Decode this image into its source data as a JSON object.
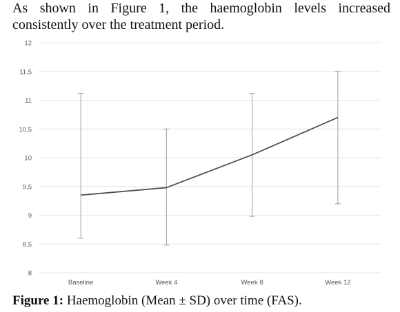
{
  "document": {
    "intro_text": "As shown in Figure 1, the haemoglobin levels increased consistently over the treatment period.",
    "caption_label": "Figure 1:",
    "caption_text": " Haemoglobin (Mean ± SD) over time (FAS)."
  },
  "chart_data": {
    "type": "line",
    "title": "",
    "xlabel": "",
    "ylabel": "",
    "ylim": [
      8,
      12
    ],
    "y_ticks": [
      "8",
      "8,5",
      "9",
      "9,5",
      "10",
      "10,5",
      "11",
      "11,5",
      "12"
    ],
    "y_tick_values": [
      8,
      8.5,
      9,
      9.5,
      10,
      10.5,
      11,
      11.5,
      12
    ],
    "categories": [
      "Baseline",
      "Week 4",
      "Week 8",
      "Week 12"
    ],
    "grid": true,
    "series": [
      {
        "values": [
          9.35,
          9.48,
          10.05,
          10.7
        ],
        "sd_lower": [
          8.6,
          8.48,
          8.98,
          9.2
        ],
        "sd_upper": [
          11.12,
          10.5,
          11.12,
          11.5
        ]
      }
    ],
    "colors": {
      "line": "#505050",
      "error_bar": "#a0a0a0",
      "grid": "#e6e6e6"
    }
  }
}
